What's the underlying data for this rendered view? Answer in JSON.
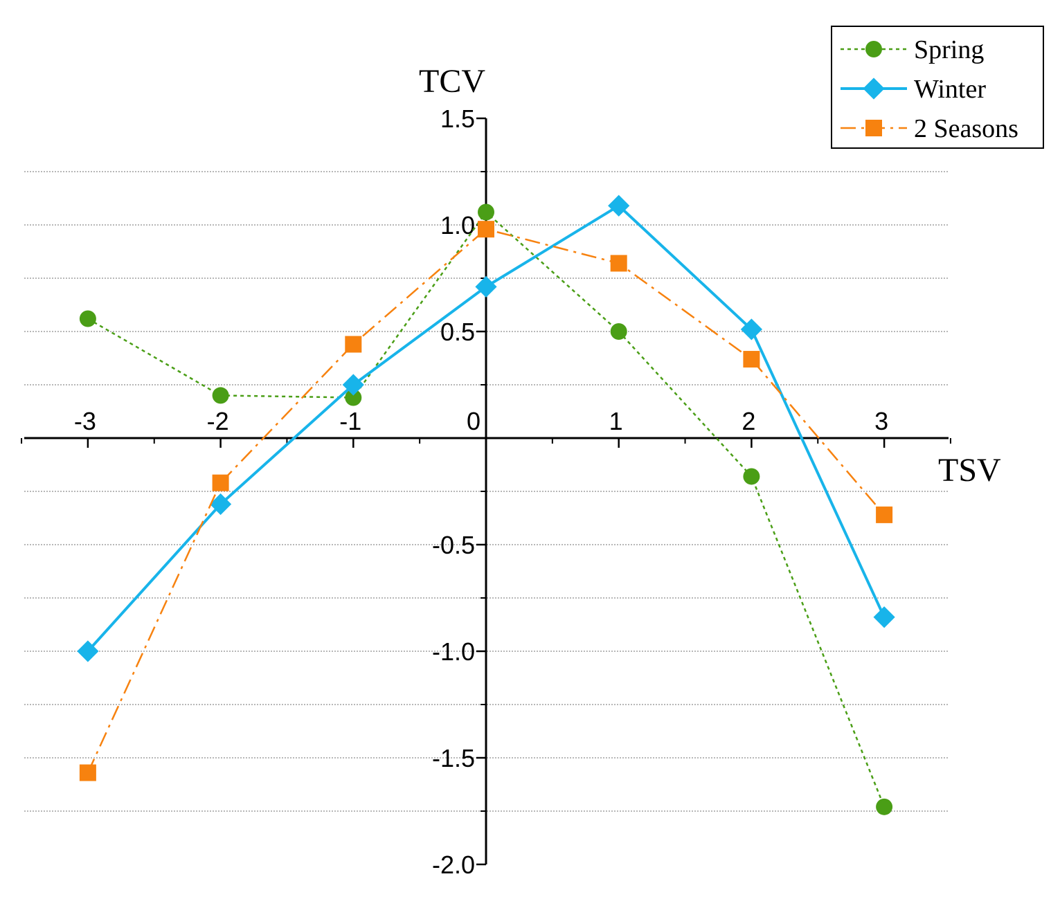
{
  "chart_data": {
    "type": "line",
    "title": "",
    "xlabel": "TSV",
    "ylabel": "TCV",
    "xlim": [
      -3.5,
      3.5
    ],
    "ylim": [
      -2.0,
      1.5
    ],
    "x": [
      -3,
      -2,
      -1,
      0,
      1,
      2,
      3
    ],
    "x_tick_labels": [
      "-3",
      "-2",
      "-1",
      "0",
      "1",
      "2",
      "3"
    ],
    "y_ticks": [
      1.5,
      1.0,
      0.5,
      -0.5,
      -1.0,
      -1.5,
      -2.0
    ],
    "y_tick_labels": [
      "1.5",
      "1.0",
      "0.5",
      "-0.5",
      "-1.0",
      "-1.5",
      "-2.0"
    ],
    "gridlines_y": [
      1.25,
      1.0,
      0.75,
      0.5,
      0.25,
      -0.25,
      -0.5,
      -0.75,
      -1.0,
      -1.25,
      -1.5,
      -1.75
    ],
    "legend_position": "top-right",
    "series": [
      {
        "name": "Spring",
        "values": [
          0.56,
          0.2,
          0.19,
          1.06,
          0.5,
          -0.18,
          -1.73
        ],
        "color": "#4a9e16",
        "marker": "circle",
        "line": "dotted"
      },
      {
        "name": "Winter",
        "values": [
          -1.0,
          -0.31,
          0.25,
          0.71,
          1.09,
          0.51,
          -0.84
        ],
        "color": "#18b4ea",
        "marker": "diamond",
        "line": "solid"
      },
      {
        "name": "2 Seasons",
        "values": [
          -1.57,
          -0.21,
          0.44,
          0.98,
          0.82,
          0.37,
          -0.36
        ],
        "color": "#f7820f",
        "marker": "square",
        "line": "dashdot"
      }
    ]
  }
}
